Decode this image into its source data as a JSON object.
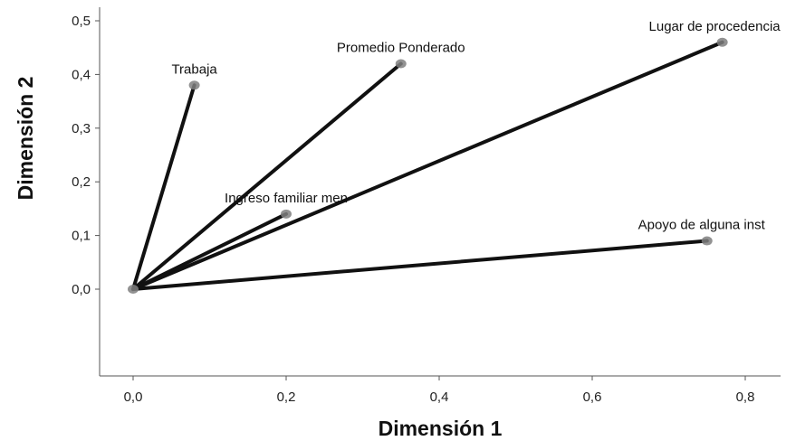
{
  "chart_data": {
    "type": "scatter",
    "title": "",
    "xlabel": "Dimensión 1",
    "ylabel": "Dimensión 2",
    "xlim": [
      -0.05,
      0.83
    ],
    "ylim": [
      -0.16,
      0.52
    ],
    "x_ticks": [
      "0,0",
      "0,2",
      "0,4",
      "0,6",
      "0,8"
    ],
    "y_ticks": [
      "0,0",
      "0,1",
      "0,2",
      "0,3",
      "0,4",
      "0,5"
    ],
    "x_tick_values": [
      0.0,
      0.2,
      0.4,
      0.6,
      0.8
    ],
    "y_tick_values": [
      0.0,
      0.1,
      0.2,
      0.3,
      0.4,
      0.5
    ],
    "origin": {
      "x": 0.0,
      "y": 0.0
    },
    "vectors_from_origin": true,
    "grid": false,
    "legend": "none",
    "points": [
      {
        "label": "Trabaja",
        "x": 0.08,
        "y": 0.38
      },
      {
        "label": "Promedio Ponderado",
        "x": 0.35,
        "y": 0.42
      },
      {
        "label": "Lugar de procedencia",
        "x": 0.77,
        "y": 0.46
      },
      {
        "label": "Ingreso familiar men",
        "x": 0.2,
        "y": 0.14
      },
      {
        "label": "Apoyo de alguna inst",
        "x": 0.75,
        "y": 0.09
      }
    ],
    "colors": {
      "line": "#111111",
      "marker": "#7f7f7f",
      "axis": "#555555"
    }
  }
}
